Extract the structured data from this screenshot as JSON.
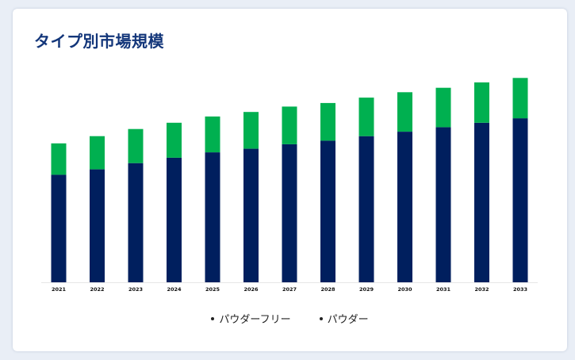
{
  "page": {
    "title": "タイプ別市場規模"
  },
  "colors": {
    "bottom_series": "#001f5e",
    "top_series": "#00b050",
    "legend_dot": "#222222"
  },
  "chart_data": {
    "type": "bar",
    "stacked": true,
    "title": "タイプ別市場規模",
    "xlabel": "",
    "ylabel": "",
    "categories": [
      "2021",
      "2022",
      "2023",
      "2024",
      "2025",
      "2026",
      "2027",
      "2028",
      "2029",
      "2030",
      "2031",
      "2032",
      "2033"
    ],
    "series": [
      {
        "name": "パウダーフリー",
        "values": [
          120,
          126,
          133,
          139,
          145,
          149,
          154,
          158,
          163,
          168,
          173,
          178,
          183
        ]
      },
      {
        "name": "パウダー",
        "values": [
          35,
          37,
          38,
          39,
          40,
          41,
          42,
          42,
          43,
          44,
          44,
          45,
          45
        ]
      }
    ],
    "ylim": [
      0,
      230
    ],
    "grid": false,
    "legend_position": "bottom"
  },
  "legend": [
    "パウダーフリー",
    "パウダー"
  ]
}
